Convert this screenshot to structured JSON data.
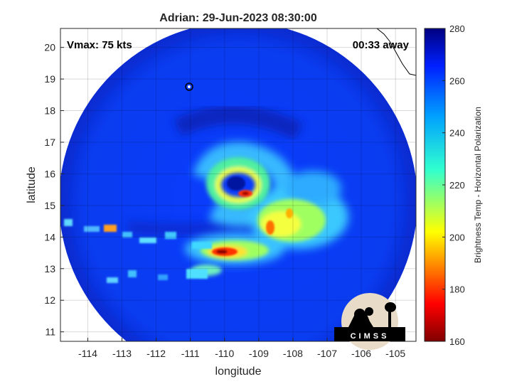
{
  "chart_data": {
    "type": "heatmap",
    "title": "Adrian: 29-Jun-2023 08:30:00",
    "xlabel": "longitude",
    "ylabel": "latitude",
    "xlim": [
      -114.8,
      -104.4
    ],
    "ylim": [
      10.7,
      20.6
    ],
    "x_ticks": [
      -114,
      -113,
      -112,
      -111,
      -110,
      -109,
      -108,
      -107,
      -106,
      -105
    ],
    "y_ticks": [
      11,
      12,
      13,
      14,
      15,
      16,
      17,
      18,
      19,
      20
    ],
    "grid": true,
    "annotations": {
      "vmax": "Vmax: 75 kts",
      "away": "00:33 away"
    },
    "colorbar": {
      "label": "Brightness Temp - Horizontal Polarization",
      "range": [
        160,
        280
      ],
      "ticks": [
        160,
        180,
        200,
        220,
        240,
        260,
        280
      ],
      "colormap": "jet"
    },
    "storm_center": {
      "lon": -109.7,
      "lat": 15.6
    },
    "features": [
      {
        "name": "eyewall",
        "lon": -109.7,
        "lat": 15.6,
        "approx_temp": 215
      },
      {
        "name": "eyewall-cold-spot",
        "lon": -109.6,
        "lat": 15.3,
        "approx_temp": 180
      },
      {
        "name": "rainband-east",
        "lon": -108.3,
        "lat": 14.5,
        "approx_temp": 205
      },
      {
        "name": "rainband-south",
        "lon": -109.9,
        "lat": 13.5,
        "approx_temp": 185
      },
      {
        "name": "ambient-ocean",
        "approx_temp": 255
      },
      {
        "name": "outer-ring",
        "approx_temp": 270
      }
    ],
    "logo": "CIMSS"
  }
}
